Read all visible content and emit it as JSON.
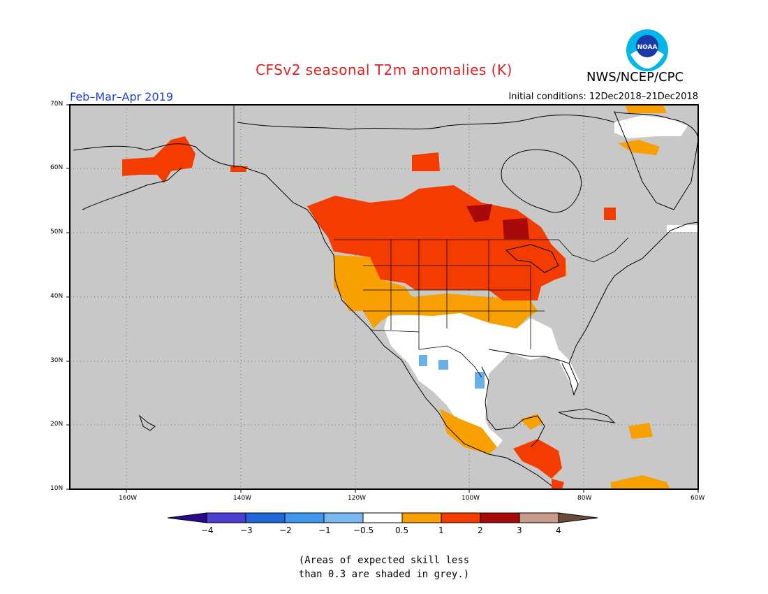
{
  "title": "CFSv2 seasonal T2m anomalies (K)",
  "org": "NWS/NCEP/CPC",
  "logo_text": "NOAA",
  "season": "Feb–Mar–Apr 2019",
  "initial_conditions": "Initial conditions: 12Dec2018–21Dec2018",
  "lat_labels": [
    "70N",
    "60N",
    "50N",
    "40N",
    "30N",
    "20N",
    "10N"
  ],
  "lon_labels": [
    "160W",
    "140W",
    "120W",
    "100W",
    "80W",
    "60W"
  ],
  "legend": {
    "ticks": [
      "−4",
      "−3",
      "−2",
      "−1",
      "−0.5",
      "0.5",
      "1",
      "2",
      "3",
      "4"
    ],
    "colors": [
      "#2a0a8a",
      "#4a3fd0",
      "#2166d8",
      "#3f98ee",
      "#7ab8f2",
      "#ffffff",
      "#f7a000",
      "#f43c00",
      "#a80a0a",
      "#c89a8a",
      "#6e4a3a"
    ]
  },
  "note_line1": "(Areas of expected skill less",
  "note_line2": "than 0.3 are shaded in grey.)",
  "colors": {
    "no_skill": "#c8c8c8",
    "neutral": "#ffffff",
    "warm_05_1": "#f7a000",
    "warm_1_2": "#f43c00",
    "warm_2_3": "#a80a0a",
    "cool": "#6aaeea"
  }
}
